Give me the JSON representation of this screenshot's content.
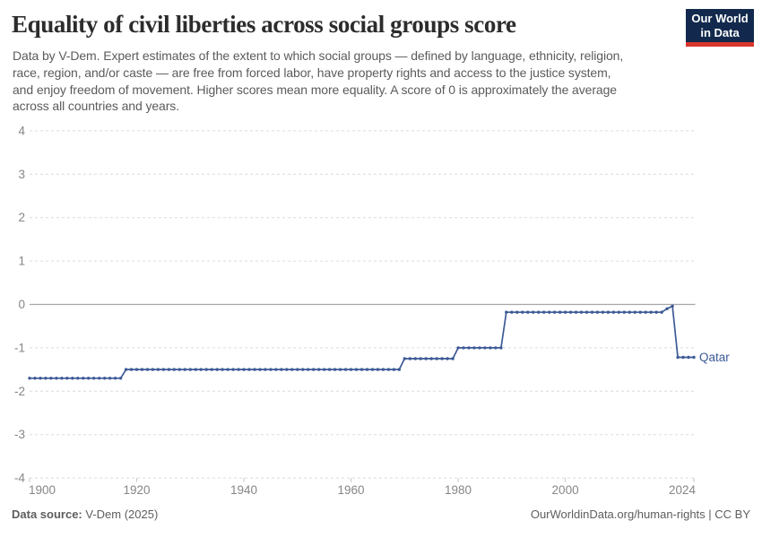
{
  "header": {
    "title": "Equality of civil liberties across social groups score",
    "subtitle": "Data by V-Dem. Expert estimates of the extent to which social groups — defined by language, ethnicity, religion, race, region, and/or caste — are free from forced labor, have property rights and access to the justice system, and enjoy freedom of movement. Higher scores mean more equality. A score of 0 is approximately the average across all countries and years.",
    "subtitle_lines": [
      "Data by V-Dem. Expert estimates of the extent to which social groups — defined by language, ethnicity, religion,",
      "race, region, and/or caste — are free from forced labor, have property rights and access to the justice system,",
      "and enjoy freedom of movement. Higher scores mean more equality. A score of 0 is approximately the average",
      "across all countries and years."
    ]
  },
  "logo": {
    "line1": "Our World",
    "line2": "in Data"
  },
  "footer": {
    "source_label": "Data source:",
    "source_value": "V-Dem (2025)",
    "attribution": "OurWorldinData.org/human-rights | CC BY"
  },
  "colors": {
    "series_line": "#3d5a96",
    "grid": "#dcdcdc",
    "zero_line": "#a5a5a5",
    "tick": "#c6c6c6",
    "axis_text": "#868686",
    "logo_navy": "#12294d",
    "logo_red": "#d8352c"
  },
  "chart_data": {
    "type": "line",
    "title": "Equality of civil liberties across social groups score",
    "entity": "Qatar",
    "xlabel": "",
    "ylabel": "",
    "xlim": [
      1900,
      2024
    ],
    "ylim": [
      -4,
      4
    ],
    "xticks": [
      1900,
      1920,
      1940,
      1960,
      1980,
      2000,
      2024
    ],
    "yticks": [
      4,
      3,
      2,
      1,
      0,
      -1,
      -2,
      -3,
      -4
    ],
    "grid": "dashed-horizontal",
    "legend_position": "end-of-line-label",
    "markers": "yearly-dots",
    "series": [
      {
        "name": "Qatar",
        "x_start": 1900,
        "x_step": 1,
        "values": [
          -1.7,
          -1.7,
          -1.7,
          -1.7,
          -1.7,
          -1.7,
          -1.7,
          -1.7,
          -1.7,
          -1.7,
          -1.7,
          -1.7,
          -1.7,
          -1.7,
          -1.7,
          -1.7,
          -1.7,
          -1.7,
          -1.5,
          -1.5,
          -1.5,
          -1.5,
          -1.5,
          -1.5,
          -1.5,
          -1.5,
          -1.5,
          -1.5,
          -1.5,
          -1.5,
          -1.5,
          -1.5,
          -1.5,
          -1.5,
          -1.5,
          -1.5,
          -1.5,
          -1.5,
          -1.5,
          -1.5,
          -1.5,
          -1.5,
          -1.5,
          -1.5,
          -1.5,
          -1.5,
          -1.5,
          -1.5,
          -1.5,
          -1.5,
          -1.5,
          -1.5,
          -1.5,
          -1.5,
          -1.5,
          -1.5,
          -1.5,
          -1.5,
          -1.5,
          -1.5,
          -1.5,
          -1.5,
          -1.5,
          -1.5,
          -1.5,
          -1.5,
          -1.5,
          -1.5,
          -1.5,
          -1.5,
          -1.25,
          -1.25,
          -1.25,
          -1.25,
          -1.25,
          -1.25,
          -1.25,
          -1.25,
          -1.25,
          -1.25,
          -1.0,
          -1.0,
          -1.0,
          -1.0,
          -1.0,
          -1.0,
          -1.0,
          -1.0,
          -1.0,
          -0.18,
          -0.18,
          -0.18,
          -0.18,
          -0.18,
          -0.18,
          -0.18,
          -0.18,
          -0.18,
          -0.18,
          -0.18,
          -0.18,
          -0.18,
          -0.18,
          -0.18,
          -0.18,
          -0.18,
          -0.18,
          -0.18,
          -0.18,
          -0.18,
          -0.18,
          -0.18,
          -0.18,
          -0.18,
          -0.18,
          -0.18,
          -0.18,
          -0.18,
          -0.18,
          -0.1,
          -0.04,
          -1.22,
          -1.22,
          -1.22,
          -1.22
        ]
      }
    ]
  }
}
